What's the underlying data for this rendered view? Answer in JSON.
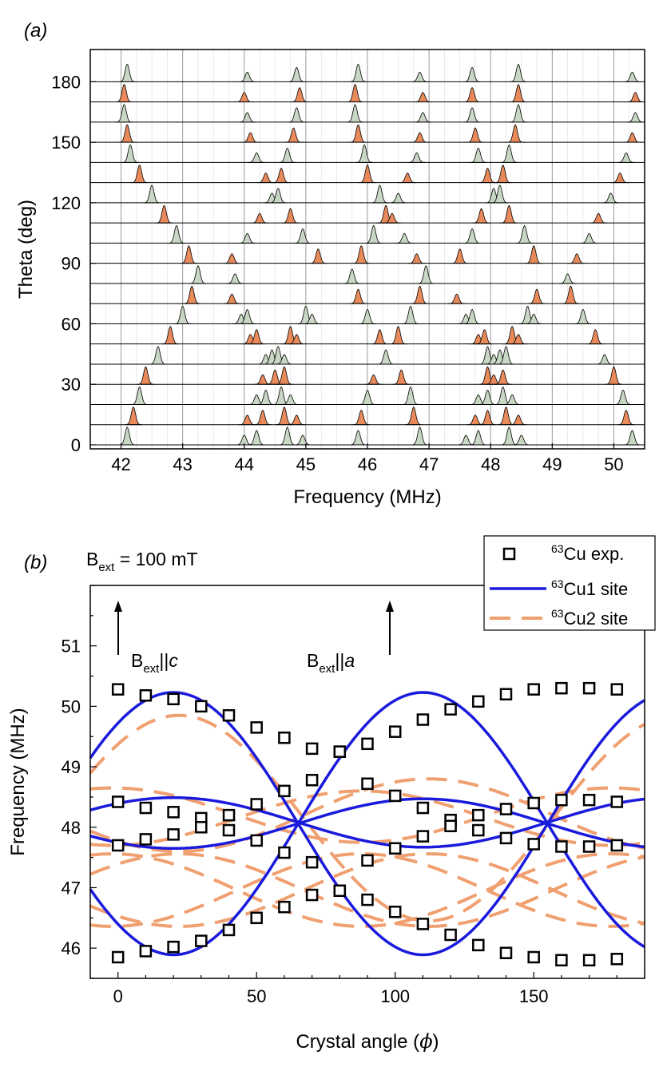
{
  "chart_data": [
    {
      "type": "line",
      "panel_label": "(a)",
      "title": "",
      "xlabel": "Frequency (MHz)",
      "ylabel": "Theta (deg)",
      "xlim": [
        41.5,
        50.5
      ],
      "ylim": [
        -2,
        196
      ],
      "xticks": [
        "42",
        "43",
        "44",
        "45",
        "46",
        "47",
        "48",
        "49",
        "50"
      ],
      "yticks": [
        "0",
        "30",
        "60",
        "90",
        "120",
        "150",
        "180"
      ],
      "grid": "vertical minor lines",
      "offset_step_deg": 10,
      "colors": {
        "cu1_fill": "#c8d8c4",
        "cu2_fill": "#e88a5a",
        "trace": "#000000",
        "grid": "#bdbdbd"
      },
      "traces": [
        {
          "theta": 0,
          "site": "cu1",
          "peaks": [
            42.1,
            44.0,
            44.2,
            44.7,
            44.95,
            45.85,
            46.85,
            47.6,
            47.8,
            48.3,
            48.5,
            50.3
          ]
        },
        {
          "theta": 10,
          "site": "cu2",
          "peaks": [
            42.2,
            44.05,
            44.3,
            44.65,
            44.85,
            45.9,
            46.75,
            47.75,
            47.95,
            48.25,
            48.45,
            50.2
          ]
        },
        {
          "theta": 20,
          "site": "cu1",
          "peaks": [
            42.3,
            44.2,
            44.35,
            44.6,
            44.75,
            46.0,
            46.7,
            47.8,
            47.95,
            48.2,
            48.35,
            50.15
          ]
        },
        {
          "theta": 30,
          "site": "cu2",
          "peaks": [
            42.4,
            44.3,
            44.5,
            44.65,
            46.1,
            46.55,
            47.95,
            48.05,
            48.2,
            50.0
          ]
        },
        {
          "theta": 40,
          "site": "cu1",
          "peaks": [
            42.6,
            44.35,
            44.45,
            44.55,
            44.65,
            46.3,
            47.95,
            48.05,
            48.15,
            48.25,
            49.85
          ]
        },
        {
          "theta": 50,
          "site": "cu2",
          "peaks": [
            42.8,
            44.1,
            44.2,
            44.75,
            44.85,
            46.2,
            46.5,
            47.8,
            47.9,
            48.35,
            48.45,
            49.7
          ]
        },
        {
          "theta": 60,
          "site": "cu1",
          "peaks": [
            43.0,
            43.95,
            44.05,
            45.0,
            45.1,
            46.0,
            46.7,
            47.6,
            47.7,
            48.6,
            48.7,
            49.5
          ]
        },
        {
          "theta": 70,
          "site": "cu2",
          "peaks": [
            43.15,
            43.8,
            45.85,
            46.85,
            47.45,
            48.75,
            49.3
          ]
        },
        {
          "theta": 80,
          "site": "cu1",
          "peaks": [
            43.25,
            43.85,
            45.75,
            46.95,
            49.25
          ]
        },
        {
          "theta": 90,
          "site": "cu2",
          "peaks": [
            43.1,
            43.8,
            45.2,
            45.9,
            46.8,
            47.5,
            48.7,
            49.4
          ]
        },
        {
          "theta": 100,
          "site": "cu1",
          "peaks": [
            42.9,
            44.05,
            44.95,
            46.1,
            46.6,
            47.7,
            48.55,
            49.6
          ]
        },
        {
          "theta": 110,
          "site": "cu2",
          "peaks": [
            42.7,
            44.25,
            44.75,
            46.3,
            46.4,
            47.85,
            48.3,
            49.75
          ]
        },
        {
          "theta": 120,
          "site": "cu1",
          "peaks": [
            42.5,
            44.45,
            44.55,
            46.2,
            46.5,
            48.05,
            48.15,
            49.95
          ]
        },
        {
          "theta": 130,
          "site": "cu2",
          "peaks": [
            42.3,
            44.35,
            44.6,
            46.0,
            46.65,
            47.95,
            48.2,
            50.1
          ]
        },
        {
          "theta": 140,
          "site": "cu1",
          "peaks": [
            42.15,
            44.2,
            44.7,
            45.95,
            46.8,
            47.8,
            48.3,
            50.2
          ]
        },
        {
          "theta": 150,
          "site": "cu2",
          "peaks": [
            42.1,
            44.1,
            44.8,
            45.85,
            46.85,
            47.75,
            48.4,
            50.3
          ]
        },
        {
          "theta": 160,
          "site": "cu1",
          "peaks": [
            42.05,
            44.05,
            44.85,
            45.8,
            46.9,
            47.7,
            48.45,
            50.35
          ]
        },
        {
          "theta": 170,
          "site": "cu2",
          "peaks": [
            42.05,
            44.0,
            44.9,
            45.8,
            46.9,
            47.7,
            48.45,
            50.35
          ]
        },
        {
          "theta": 180,
          "site": "cu1",
          "peaks": [
            42.1,
            44.05,
            44.85,
            45.85,
            46.85,
            47.7,
            48.45,
            50.3
          ]
        }
      ]
    },
    {
      "type": "scatter",
      "panel_label": "(b)",
      "annotation_field": {
        "base": "B",
        "sub": "ext",
        "text": " = 100 mT"
      },
      "arrow_c": {
        "base": "B",
        "sub": "ext",
        "sep": "||",
        "axis": "c",
        "angle": 0
      },
      "arrow_a": {
        "base": "B",
        "sub": "ext",
        "sep": "||",
        "axis": "a",
        "angle": 100
      },
      "xlabel_prefix": "Crystal angle (",
      "xlabel_symbol": "ϕ",
      "xlabel_suffix": ")",
      "ylabel": "Frequency (MHz)",
      "xlim": [
        -10,
        190
      ],
      "ylim": [
        45.5,
        52.0
      ],
      "xticks": [
        "0",
        "50",
        "100",
        "150"
      ],
      "yticks": [
        "46",
        "47",
        "48",
        "49",
        "50",
        "51"
      ],
      "legend_position": "top-right",
      "legend": [
        {
          "sup": "63",
          "text": "Cu exp.",
          "style": "square-marker"
        },
        {
          "sup": "63",
          "text": "Cu1 site",
          "style": "solid-blue"
        },
        {
          "sup": "63",
          "text": "Cu2 site",
          "style": "dashed-orange"
        }
      ],
      "colors": {
        "cu1": "#1a1adc",
        "cu2": "#f0a070",
        "marker": "#000000"
      },
      "x": [
        0,
        10,
        20,
        30,
        40,
        50,
        60,
        70,
        80,
        90,
        100,
        110,
        120,
        130,
        140,
        150,
        160,
        170,
        180
      ],
      "series": [
        {
          "name": "exp-1",
          "values": [
            50.28,
            50.18,
            50.12,
            50.0,
            49.85,
            49.65,
            49.48,
            49.3,
            49.25,
            49.38,
            49.58,
            49.78,
            49.95,
            50.08,
            50.2,
            50.28,
            50.3,
            50.3,
            50.28
          ]
        },
        {
          "name": "exp-2",
          "values": [
            48.42,
            48.32,
            48.25,
            48.15,
            48.2,
            48.38,
            48.6,
            48.78,
            49.25,
            48.72,
            48.52,
            48.32,
            48.12,
            48.2,
            48.3,
            48.4,
            48.45,
            48.45,
            48.42
          ]
        },
        {
          "name": "exp-3",
          "values": [
            47.7,
            47.8,
            47.88,
            48.0,
            47.95,
            47.78,
            47.58,
            47.42,
            46.95,
            47.45,
            47.65,
            47.85,
            48.02,
            47.95,
            47.82,
            47.72,
            47.68,
            47.68,
            47.7
          ]
        },
        {
          "name": "exp-4",
          "values": [
            45.85,
            45.95,
            46.02,
            46.12,
            46.3,
            46.5,
            46.68,
            46.88,
            46.95,
            46.8,
            46.6,
            46.4,
            46.22,
            46.05,
            45.92,
            45.85,
            45.8,
            45.8,
            45.82
          ]
        }
      ],
      "fit_model": {
        "cu1": [
          {
            "mean": 48.06,
            "amp": 2.17,
            "phase": -10
          },
          {
            "mean": 48.08,
            "amp": 0.41,
            "phase": -10
          },
          {
            "mean": 48.06,
            "amp": -0.41,
            "phase": -10
          },
          {
            "mean": 48.06,
            "amp": -2.17,
            "phase": -10
          }
        ],
        "cu2": [
          {
            "mean": 48.15,
            "amp": 1.7,
            "phase": -12
          },
          {
            "mean": 48.15,
            "amp": -0.45,
            "phase": 12
          },
          {
            "mean": 48.2,
            "amp": 0.45,
            "phase": 12
          },
          {
            "mean": 48.2,
            "amp": -0.6,
            "phase": -12
          },
          {
            "mean": 46.96,
            "amp": 0.6,
            "phase": -12
          },
          {
            "mean": 46.96,
            "amp": -0.6,
            "phase": 12
          },
          {
            "mean": 46.96,
            "amp": 0.6,
            "phase": 12
          },
          {
            "mean": 46.96,
            "amp": -0.6,
            "phase": -12
          }
        ]
      }
    }
  ]
}
